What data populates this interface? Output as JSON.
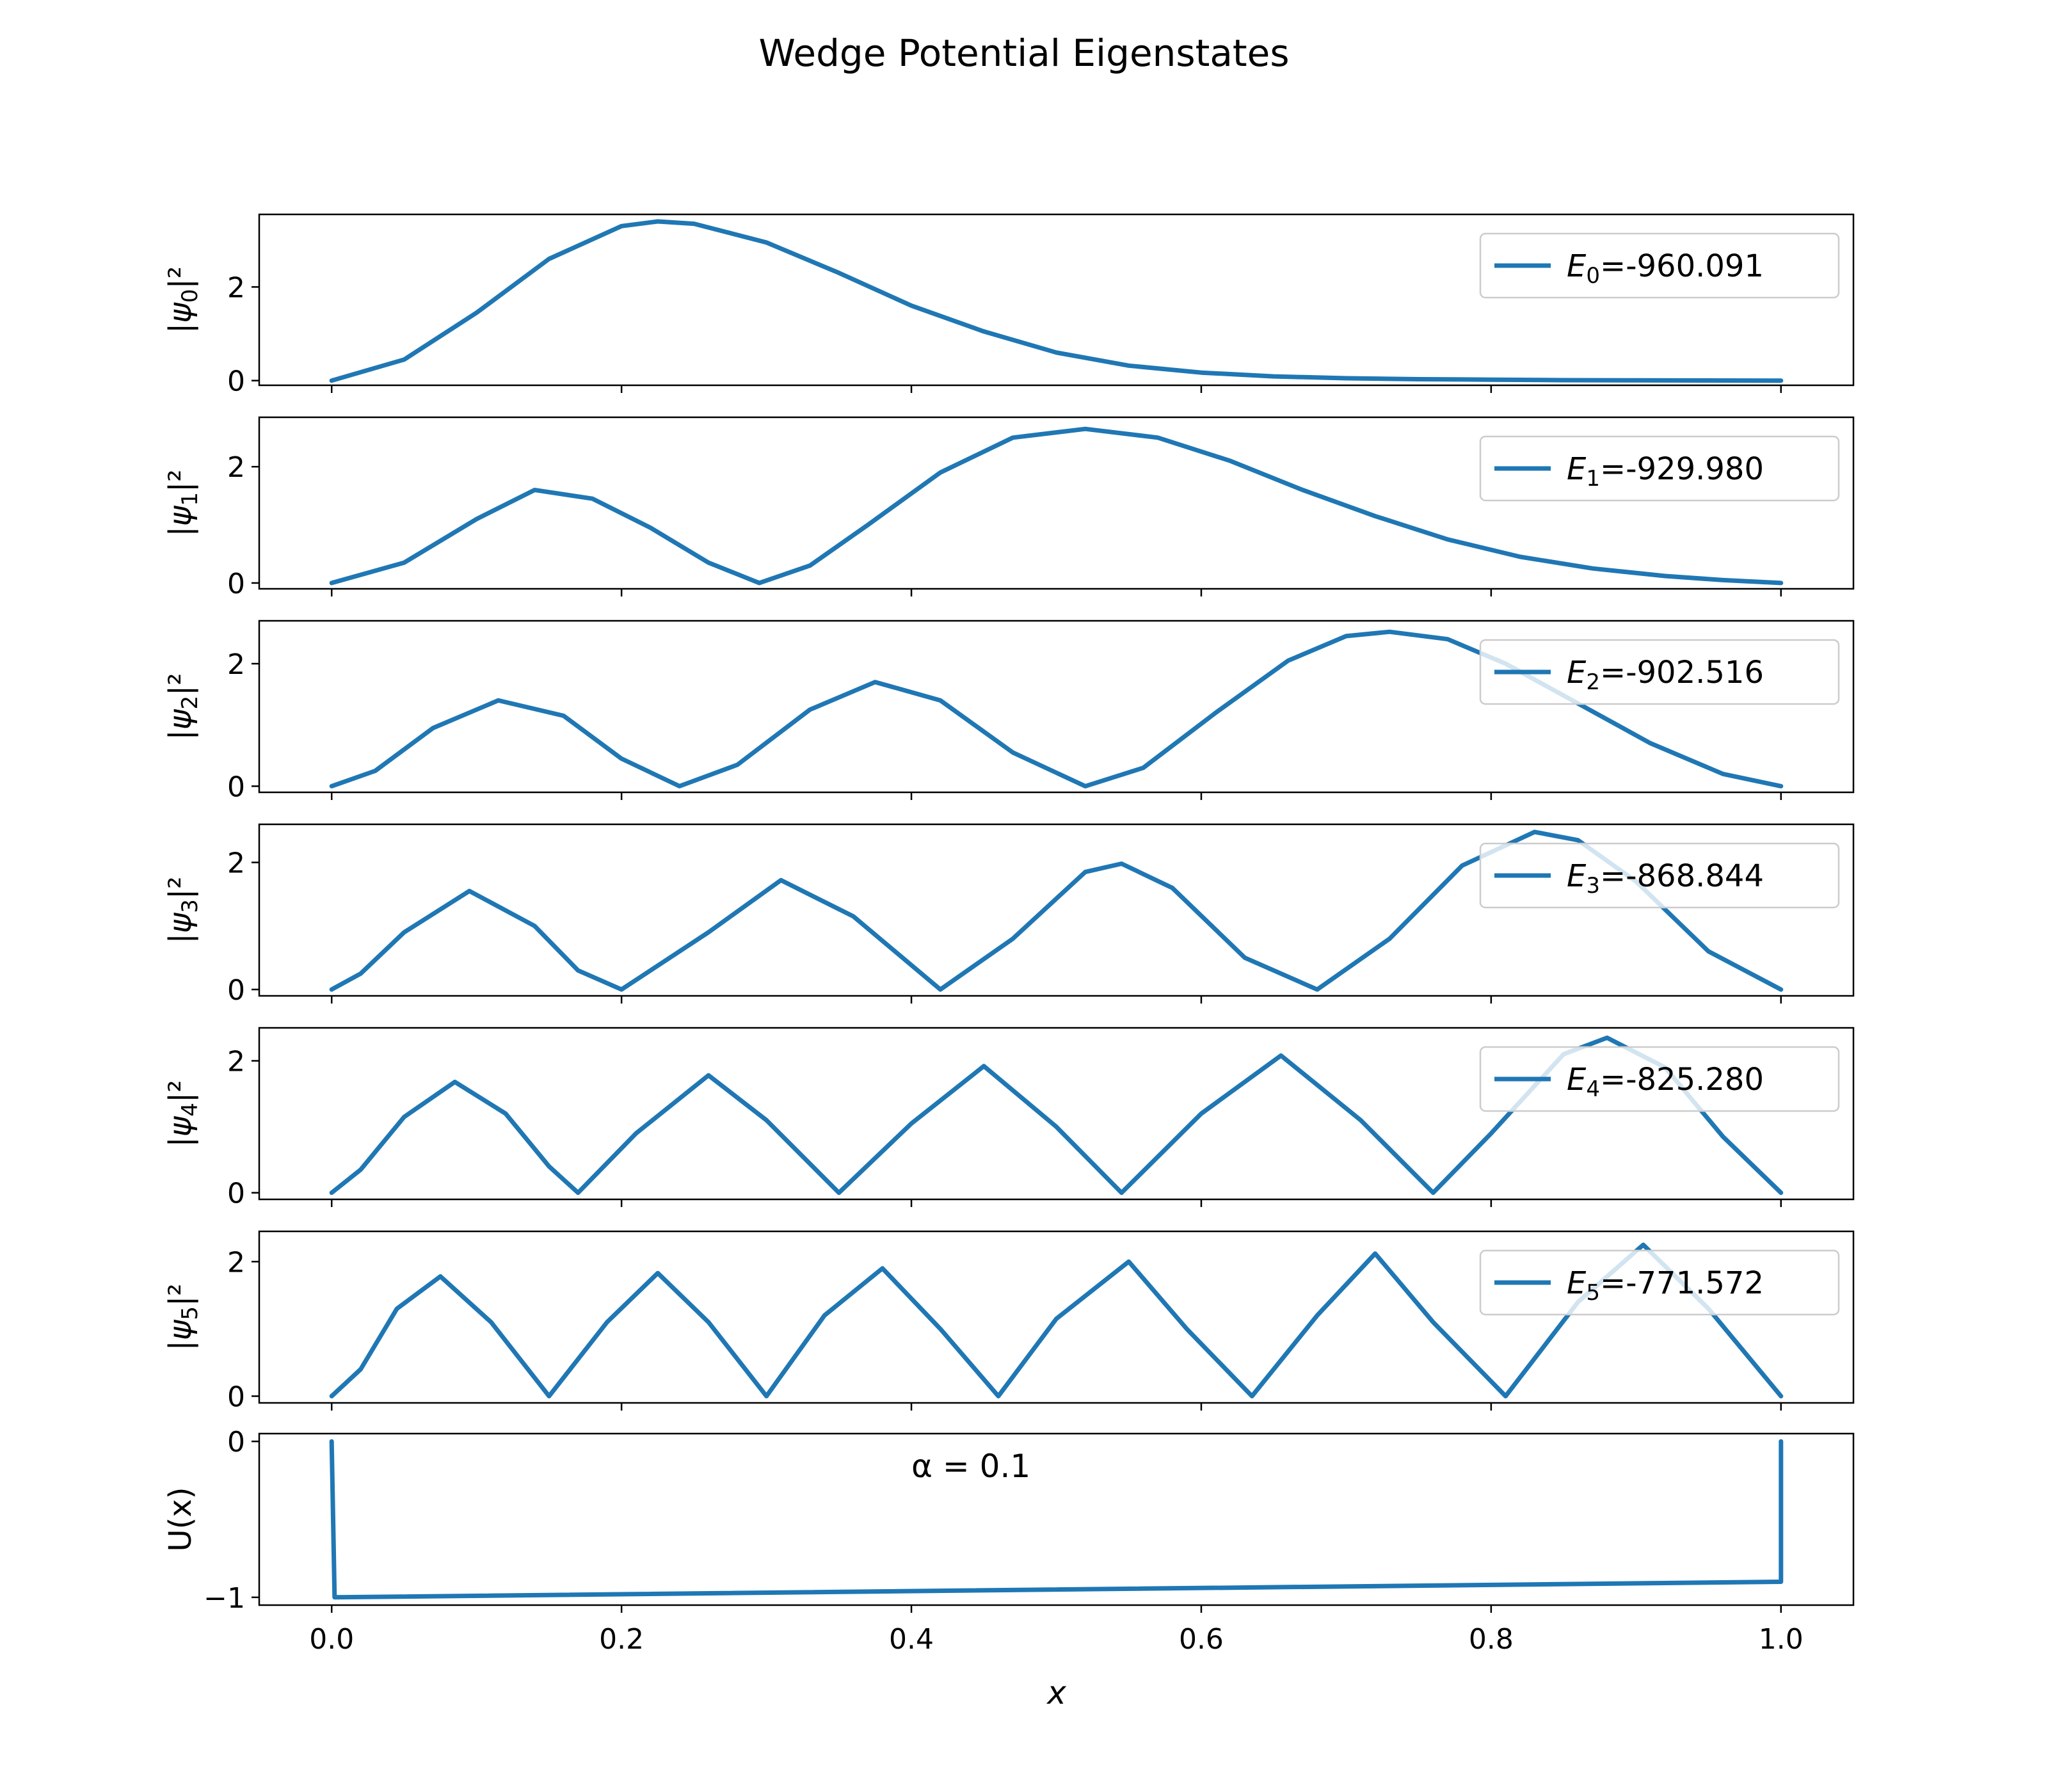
{
  "title": "Wedge Potential Eigenstates",
  "colors": {
    "line": "#1f77b4",
    "axes": "#000000",
    "legend_edge": "#cccccc",
    "background": "#ffffff"
  },
  "chart_data": {
    "type": "line",
    "layout": "stacked-subplots",
    "shared_xaxis": {
      "label": "x",
      "xlim": [
        -0.05,
        1.05
      ],
      "ticks": [
        "0.0",
        "0.2",
        "0.4",
        "0.6",
        "0.8",
        "1.0"
      ]
    },
    "legend_placement": "upper right",
    "grid": false,
    "panels": [
      {
        "ylabel": "|ψ0|²",
        "ylim": [
          -0.1,
          3.55
        ],
        "yticks": [
          "0",
          "2"
        ],
        "legend": "E0=-960.091",
        "series": {
          "x": [
            0.0,
            0.05,
            0.1,
            0.15,
            0.2,
            0.225,
            0.25,
            0.3,
            0.35,
            0.4,
            0.45,
            0.5,
            0.55,
            0.6,
            0.65,
            0.7,
            0.75,
            0.8,
            0.85,
            0.9,
            0.95,
            1.0
          ],
          "y": [
            0.0,
            0.45,
            1.45,
            2.6,
            3.3,
            3.4,
            3.35,
            2.95,
            2.3,
            1.6,
            1.05,
            0.6,
            0.32,
            0.17,
            0.09,
            0.05,
            0.03,
            0.02,
            0.01,
            0.005,
            0.002,
            0.0
          ]
        }
      },
      {
        "ylabel": "|ψ1|²",
        "ylim": [
          -0.1,
          2.85
        ],
        "yticks": [
          "0",
          "2"
        ],
        "legend": "E1=-929.980",
        "series": {
          "x": [
            0.0,
            0.05,
            0.1,
            0.14,
            0.18,
            0.22,
            0.26,
            0.295,
            0.33,
            0.37,
            0.42,
            0.47,
            0.52,
            0.57,
            0.62,
            0.67,
            0.72,
            0.77,
            0.82,
            0.87,
            0.92,
            0.96,
            1.0
          ],
          "y": [
            0.0,
            0.35,
            1.1,
            1.6,
            1.45,
            0.95,
            0.35,
            0.0,
            0.3,
            1.0,
            1.9,
            2.5,
            2.65,
            2.5,
            2.1,
            1.6,
            1.15,
            0.75,
            0.45,
            0.25,
            0.12,
            0.05,
            0.0
          ]
        }
      },
      {
        "ylabel": "|ψ2|²",
        "ylim": [
          -0.1,
          2.7
        ],
        "yticks": [
          "0",
          "2"
        ],
        "legend": "E2=-902.516",
        "series": {
          "x": [
            0.0,
            0.03,
            0.07,
            0.115,
            0.16,
            0.2,
            0.24,
            0.28,
            0.33,
            0.375,
            0.42,
            0.47,
            0.52,
            0.56,
            0.61,
            0.66,
            0.7,
            0.73,
            0.77,
            0.81,
            0.86,
            0.91,
            0.96,
            1.0
          ],
          "y": [
            0.0,
            0.25,
            0.95,
            1.4,
            1.15,
            0.45,
            0.0,
            0.35,
            1.25,
            1.7,
            1.4,
            0.55,
            0.0,
            0.3,
            1.2,
            2.05,
            2.45,
            2.52,
            2.4,
            2.0,
            1.35,
            0.7,
            0.2,
            0.0
          ]
        }
      },
      {
        "ylabel": "|ψ3|²",
        "ylim": [
          -0.1,
          2.6
        ],
        "yticks": [
          "0",
          "2"
        ],
        "legend": "E3=-868.844",
        "series": {
          "x": [
            0.0,
            0.02,
            0.05,
            0.095,
            0.14,
            0.17,
            0.2,
            0.26,
            0.31,
            0.36,
            0.42,
            0.47,
            0.52,
            0.545,
            0.58,
            0.63,
            0.68,
            0.73,
            0.78,
            0.83,
            0.86,
            0.9,
            0.95,
            1.0
          ],
          "y": [
            0.0,
            0.25,
            0.9,
            1.55,
            1.0,
            0.3,
            0.0,
            0.9,
            1.72,
            1.15,
            0.0,
            0.8,
            1.85,
            1.98,
            1.6,
            0.5,
            0.0,
            0.8,
            1.95,
            2.48,
            2.35,
            1.7,
            0.6,
            0.0
          ]
        }
      },
      {
        "ylabel": "|ψ4|²",
        "ylim": [
          -0.1,
          2.5
        ],
        "yticks": [
          "0",
          "2"
        ],
        "legend": "E4=-825.280",
        "series": {
          "x": [
            0.0,
            0.02,
            0.05,
            0.085,
            0.12,
            0.15,
            0.17,
            0.21,
            0.26,
            0.3,
            0.35,
            0.4,
            0.45,
            0.5,
            0.545,
            0.6,
            0.655,
            0.71,
            0.76,
            0.8,
            0.85,
            0.88,
            0.92,
            0.96,
            1.0
          ],
          "y": [
            0.0,
            0.35,
            1.15,
            1.68,
            1.2,
            0.4,
            0.0,
            0.9,
            1.78,
            1.1,
            0.0,
            1.05,
            1.92,
            1.0,
            0.0,
            1.2,
            2.08,
            1.1,
            0.0,
            0.9,
            2.1,
            2.35,
            1.9,
            0.85,
            0.0
          ]
        }
      },
      {
        "ylabel": "|ψ5|²",
        "ylim": [
          -0.1,
          2.45
        ],
        "yticks": [
          "0",
          "2"
        ],
        "legend": "E5=-771.572",
        "series": {
          "x": [
            0.0,
            0.02,
            0.045,
            0.075,
            0.11,
            0.15,
            0.19,
            0.225,
            0.26,
            0.3,
            0.34,
            0.38,
            0.42,
            0.46,
            0.5,
            0.55,
            0.59,
            0.635,
            0.68,
            0.72,
            0.76,
            0.81,
            0.86,
            0.905,
            0.95,
            1.0
          ],
          "y": [
            0.0,
            0.4,
            1.3,
            1.78,
            1.1,
            0.0,
            1.1,
            1.83,
            1.1,
            0.0,
            1.2,
            1.9,
            1.0,
            0.0,
            1.15,
            2.0,
            1.0,
            0.0,
            1.2,
            2.12,
            1.1,
            0.0,
            1.4,
            2.25,
            1.3,
            0.0
          ]
        }
      },
      {
        "ylabel": "U(x)",
        "ylim": [
          -1.05,
          0.05
        ],
        "yticks": [
          "0",
          "−1"
        ],
        "annotation": "α = 0.1",
        "series": {
          "x": [
            0.0,
            0.002,
            1.0,
            1.0
          ],
          "y": [
            0.0,
            -1.0,
            -0.9,
            0.0
          ]
        }
      }
    ]
  }
}
